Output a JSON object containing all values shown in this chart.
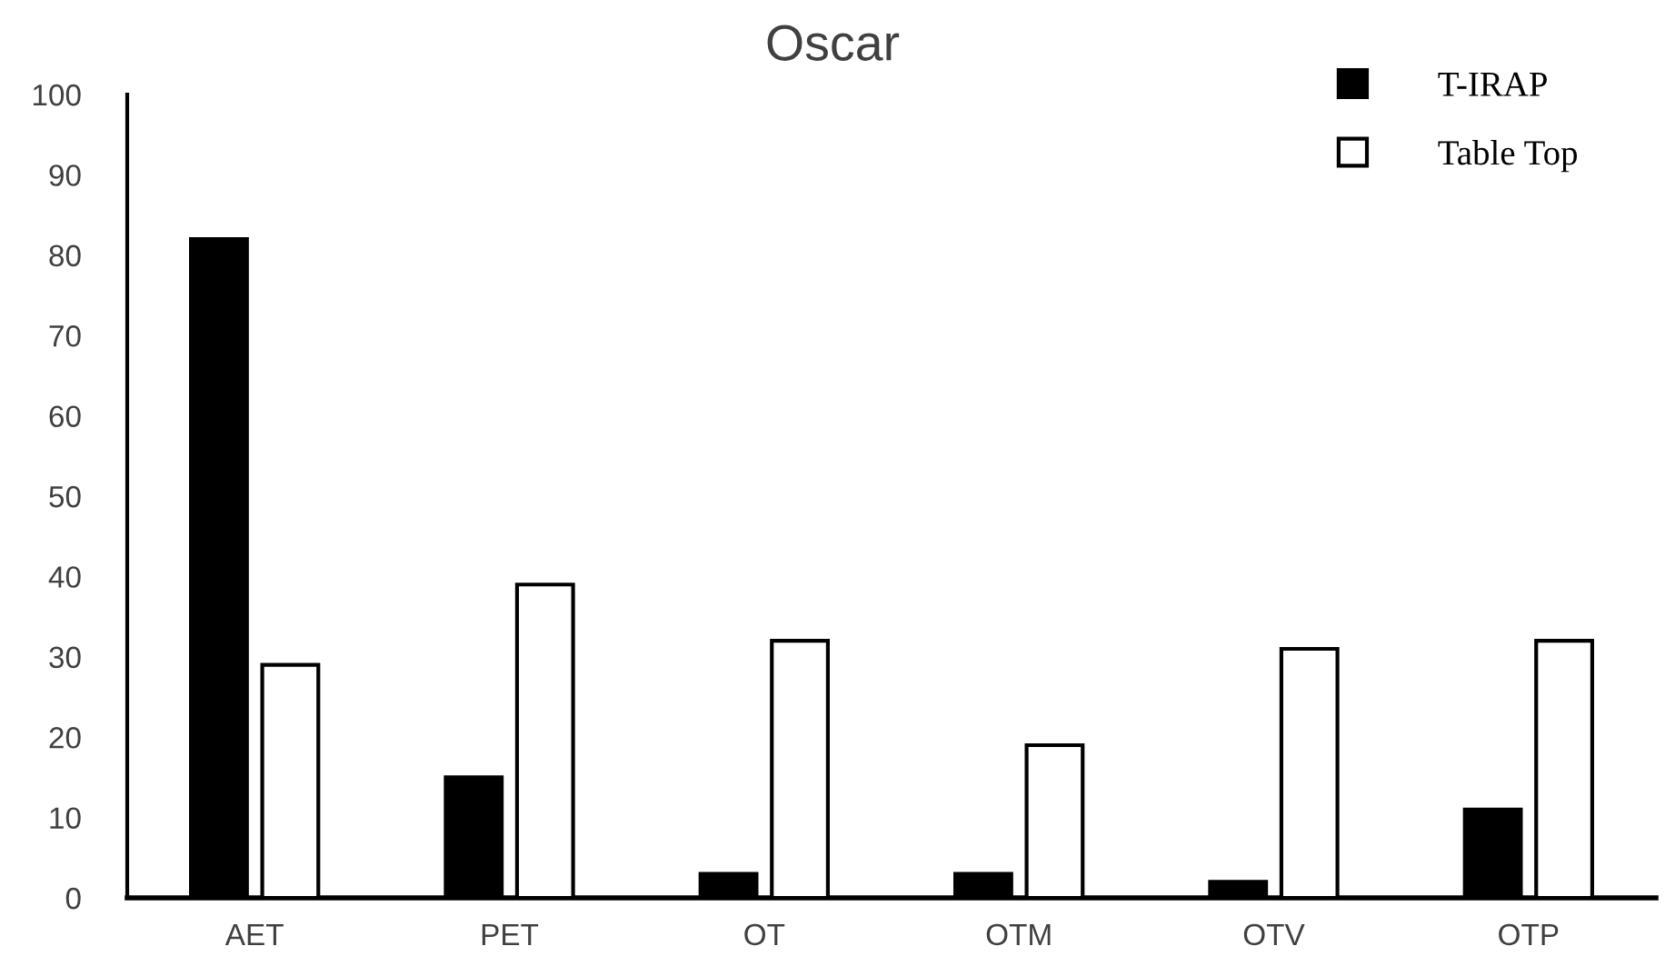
{
  "chart_data": {
    "type": "bar",
    "title": "Oscar",
    "categories": [
      "AET",
      "PET",
      "OT",
      "OTM",
      "OTV",
      "OTP"
    ],
    "series": [
      {
        "name": "T-IRAP",
        "color": "#000000",
        "values": [
          82,
          15,
          3,
          3,
          2,
          11
        ]
      },
      {
        "name": "Table Top",
        "color": "#ffffff",
        "values": [
          29,
          39,
          32,
          19,
          31,
          32
        ]
      }
    ],
    "ylim": [
      0,
      100
    ],
    "yticks": [
      0,
      10,
      20,
      30,
      40,
      50,
      60,
      70,
      80,
      90,
      100
    ],
    "grid": false,
    "legend": "top right"
  }
}
